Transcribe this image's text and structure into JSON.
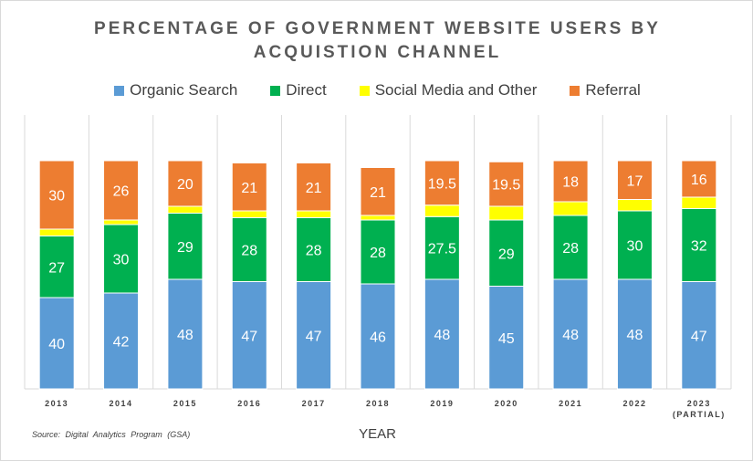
{
  "title_line1": "PERCENTAGE OF GOVERNMENT WEBSITE USERS BY",
  "title_line2": "ACQUISTION CHANNEL",
  "xlabel": "YEAR",
  "source": "Source: Digital Analytics Program (GSA)",
  "legend": [
    {
      "label": "Organic Search",
      "color": "#5b9bd5"
    },
    {
      "label": "Direct",
      "color": "#00b050"
    },
    {
      "label": "Social Media and Other",
      "color": "#ffff00"
    },
    {
      "label": "Referral",
      "color": "#ed7d31"
    }
  ],
  "chart_data": {
    "type": "bar",
    "stacked": true,
    "title": "PERCENTAGE OF GOVERNMENT WEBSITE USERS BY ACQUISTION CHANNEL",
    "xlabel": "YEAR",
    "ylabel": "",
    "ylim": [
      0,
      100
    ],
    "grid": "vertical dividers between categories",
    "legend_position": "top",
    "categories": [
      "2013",
      "2014",
      "2015",
      "2016",
      "2017",
      "2018",
      "2019",
      "2020",
      "2021",
      "2022",
      "2023"
    ],
    "category_sublabels": [
      "",
      "",
      "",
      "",
      "",
      "",
      "",
      "",
      "",
      "",
      "(PARTIAL)"
    ],
    "series": [
      {
        "name": "Organic Search",
        "color": "#5b9bd5",
        "labels_shown": true,
        "values": [
          40,
          42,
          48,
          47,
          47,
          46,
          48,
          45,
          48,
          48,
          47
        ]
      },
      {
        "name": "Direct",
        "color": "#00b050",
        "labels_shown": true,
        "values": [
          27,
          30,
          29,
          28,
          28,
          28,
          27.5,
          29,
          28,
          30,
          32
        ]
      },
      {
        "name": "Social Media and Other",
        "color": "#ffff00",
        "labels_shown": false,
        "values": [
          3,
          2,
          3,
          3,
          3,
          2,
          5,
          6,
          6,
          5,
          5
        ]
      },
      {
        "name": "Referral",
        "color": "#ed7d31",
        "labels_shown": true,
        "values": [
          30,
          26,
          20,
          21,
          21,
          21,
          19.5,
          19.5,
          18,
          17,
          16
        ]
      }
    ]
  }
}
